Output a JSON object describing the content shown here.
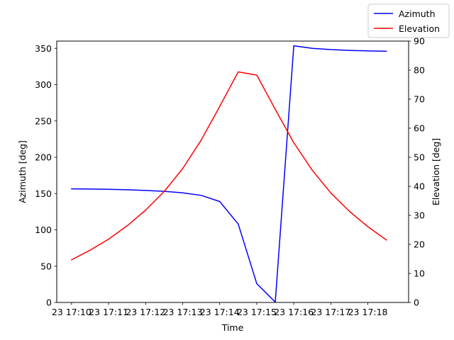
{
  "chart_data": {
    "type": "line",
    "title": "",
    "xlabel": "Time",
    "ylabel": "Azimuth [deg]",
    "ylabel_right": "Elevation [deg]",
    "xlim": [
      -0.4,
      9.1
    ],
    "ylim": [
      0,
      360
    ],
    "ylim_right": [
      0,
      90
    ],
    "x_ticks": [
      {
        "x": 0,
        "label": "23 17:10"
      },
      {
        "x": 1,
        "label": "23 17:11"
      },
      {
        "x": 2,
        "label": "23 17:12"
      },
      {
        "x": 3,
        "label": "23 17:13"
      },
      {
        "x": 4,
        "label": "23 17:14"
      },
      {
        "x": 5,
        "label": "23 17:15"
      },
      {
        "x": 6,
        "label": "23 17:16"
      },
      {
        "x": 7,
        "label": "23 17:17"
      },
      {
        "x": 8,
        "label": "23 17:18"
      }
    ],
    "y_ticks": [
      0,
      50,
      100,
      150,
      200,
      250,
      300,
      350
    ],
    "y_ticks_right": [
      0,
      10,
      20,
      30,
      40,
      50,
      60,
      70,
      80,
      90
    ],
    "grid": false,
    "legend_position": "top-right",
    "series": [
      {
        "name": "Azimuth",
        "axis": "left",
        "color": "#0000ff",
        "x": [
          0,
          0.5,
          1,
          1.5,
          2,
          2.5,
          3,
          3.5,
          4,
          4.5,
          5,
          5.5,
          6,
          6.5,
          7,
          7.5,
          8,
          8.5
        ],
        "values": [
          156.5,
          156.2,
          155.8,
          155.2,
          154.3,
          153.0,
          151.0,
          147.5,
          139.0,
          108.0,
          26.0,
          0.5,
          353.5,
          350.0,
          348.3,
          347.2,
          346.5,
          346.0
        ]
      },
      {
        "name": "Elevation",
        "axis": "right",
        "color": "#ff0000",
        "x": [
          0,
          0.5,
          1,
          1.5,
          2,
          2.5,
          3,
          3.5,
          4,
          4.5,
          5,
          5.5,
          6,
          6.5,
          7,
          7.5,
          8,
          8.5
        ],
        "values": [
          14.7,
          18.0,
          21.8,
          26.4,
          31.8,
          38.2,
          46.1,
          55.9,
          67.5,
          79.4,
          78.3,
          66.5,
          55.0,
          45.5,
          37.7,
          31.4,
          26.1,
          21.5
        ]
      }
    ]
  }
}
